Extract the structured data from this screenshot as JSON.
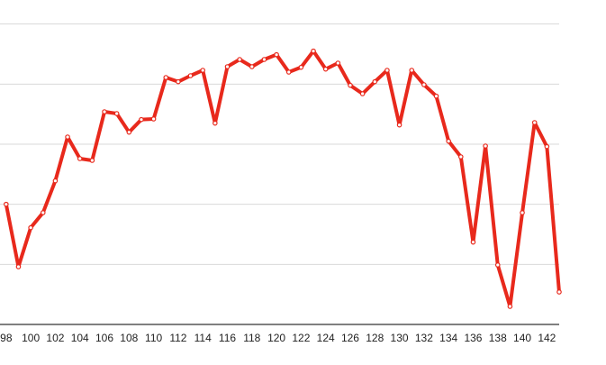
{
  "chart_data": {
    "type": "line",
    "x": [
      98,
      99,
      100,
      101,
      102,
      103,
      104,
      105,
      106,
      107,
      108,
      109,
      110,
      111,
      112,
      113,
      114,
      115,
      116,
      117,
      118,
      119,
      120,
      121,
      122,
      123,
      124,
      125,
      126,
      127,
      128,
      129,
      130,
      131,
      132,
      133,
      134,
      135,
      136,
      137,
      138,
      139,
      140,
      141,
      142,
      143
    ],
    "series": [
      {
        "color": "#e8291c",
        "values": [
          2.0,
          0.96,
          1.61,
          1.86,
          2.39,
          3.12,
          2.76,
          2.73,
          3.54,
          3.51,
          3.2,
          3.41,
          3.42,
          4.11,
          4.04,
          4.14,
          4.23,
          3.35,
          4.29,
          4.41,
          4.29,
          4.41,
          4.49,
          4.2,
          4.28,
          4.55,
          4.25,
          4.35,
          3.98,
          3.84,
          4.04,
          4.23,
          3.32,
          4.23,
          3.99,
          3.8,
          3.05,
          2.79,
          1.37,
          2.97,
          0.99,
          0.3,
          1.86,
          3.36,
          2.96,
          0.54
        ]
      }
    ],
    "xlim": [
      97.5,
      143
    ],
    "xticks": [
      98,
      100,
      102,
      104,
      106,
      108,
      110,
      112,
      114,
      116,
      118,
      120,
      122,
      124,
      126,
      128,
      130,
      132,
      134,
      136,
      138,
      140,
      142
    ],
    "ylim": [
      0,
      5.4
    ],
    "yticks": [
      1,
      2,
      3,
      4,
      5
    ],
    "grid": true
  }
}
